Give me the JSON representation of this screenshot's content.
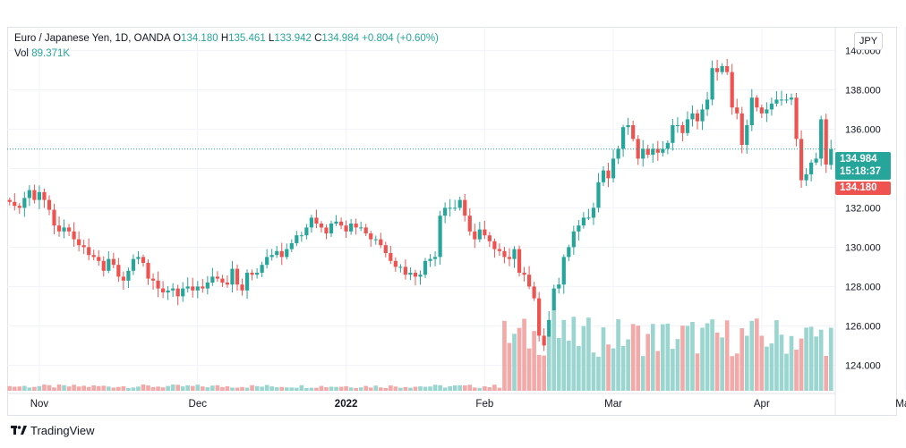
{
  "legend": {
    "symbol": "Euro / Japanese Yen, 1D, OANDA",
    "o_label": "O",
    "o_value": "134.180",
    "h_label": "H",
    "h_value": "135.461",
    "l_label": "L",
    "l_value": "133.942",
    "c_label": "C",
    "c_value": "134.984",
    "change": "+0.804 (+0.60%)",
    "vol_label": "Vol",
    "vol_value": "89.371K"
  },
  "currency_button": "JPY",
  "price_tags": {
    "last_price": "134.984",
    "countdown": "15:18:37",
    "open_price": "134.180"
  },
  "brand": "TradingView",
  "colors": {
    "up": "#26a69a",
    "down": "#ef5350",
    "up_vol": "#9ad5cf",
    "down_vol": "#f3a9a8",
    "grid": "#f0f3fa"
  },
  "chart_data": {
    "type": "candlestick",
    "symbol": "EUR/JPY",
    "ylim": [
      122.7,
      141.2
    ],
    "y_ticks": [
      "124.000",
      "126.000",
      "128.000",
      "130.000",
      "132.000",
      "134.000",
      "136.000",
      "138.000",
      "140.000"
    ],
    "x_ticks": [
      "Nov",
      "Dec",
      "2022",
      "Feb",
      "Mar",
      "Apr",
      "May"
    ],
    "x_tick_index": [
      6,
      38,
      68,
      96,
      122,
      152,
      181
    ],
    "close_series": [
      132.3,
      132.1,
      132.0,
      132.5,
      132.9,
      132.4,
      132.8,
      132.4,
      131.9,
      131.1,
      130.8,
      131.0,
      130.8,
      130.4,
      130.1,
      130.0,
      129.6,
      129.5,
      129.3,
      128.8,
      129.4,
      129.1,
      128.5,
      128.3,
      128.8,
      129.4,
      129.5,
      129.2,
      128.4,
      128.3,
      127.9,
      127.7,
      127.8,
      127.9,
      127.5,
      127.9,
      128.0,
      127.8,
      128.0,
      127.9,
      128.2,
      128.5,
      128.4,
      128.2,
      128.1,
      128.9,
      128.1,
      127.8,
      128.7,
      128.6,
      128.7,
      129.1,
      129.5,
      129.6,
      129.8,
      129.5,
      129.9,
      130.2,
      130.6,
      130.6,
      131.0,
      131.5,
      131.2,
      131.0,
      130.7,
      131.2,
      131.3,
      131.1,
      130.8,
      131.2,
      131.0,
      131.0,
      130.7,
      130.4,
      130.4,
      130.1,
      129.7,
      129.3,
      129.0,
      129.0,
      128.6,
      128.7,
      128.5,
      128.6,
      129.3,
      129.4,
      129.5,
      131.6,
      132.0,
      132.0,
      132.0,
      132.4,
      131.6,
      130.8,
      130.4,
      130.9,
      130.6,
      130.3,
      129.9,
      129.8,
      129.5,
      129.4,
      129.9,
      128.7,
      128.6,
      128.0,
      127.4,
      125.5,
      125.0,
      126.3,
      127.9,
      128.1,
      129.5,
      130.0,
      130.8,
      131.1,
      131.5,
      131.5,
      132.0,
      133.3,
      133.9,
      133.5,
      134.5,
      135.0,
      136.1,
      136.2,
      135.5,
      134.5,
      135.0,
      134.7,
      135.0,
      134.8,
      135.0,
      135.3,
      136.2,
      136.2,
      135.8,
      136.5,
      136.8,
      136.4,
      137.0,
      137.5,
      139.1,
      138.9,
      139.2,
      138.9,
      137.1,
      136.8,
      135.2,
      136.2,
      137.6,
      137.1,
      136.8,
      137.0,
      137.3,
      137.5,
      137.5,
      137.5,
      137.6,
      135.5,
      133.4,
      133.7,
      134.3,
      134.5,
      136.5,
      134.2,
      134.98
    ],
    "volume_label": "Vol",
    "last_close": 134.984,
    "last_open": 134.18,
    "last_high": 135.461,
    "last_low": 133.942
  }
}
